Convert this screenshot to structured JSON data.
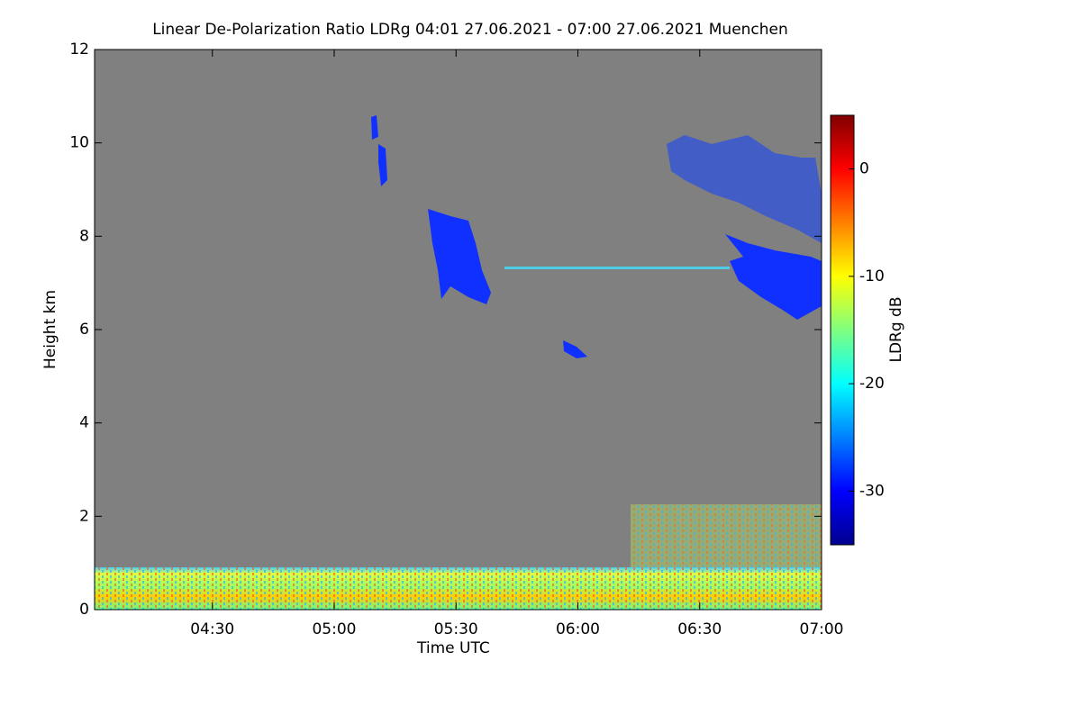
{
  "chart_data": {
    "type": "heatmap",
    "title": "Linear De-Polarization Ratio LDRg   04:01 27.06.2021 - 07:00 27.06.2021 Muenchen",
    "x_label": "Time UTC",
    "y_label": "Height km",
    "colorbar_label": "LDRg dB",
    "xlim": [
      241,
      420
    ],
    "xticks": [
      {
        "value": 270,
        "label": "04:30"
      },
      {
        "value": 300,
        "label": "05:00"
      },
      {
        "value": 330,
        "label": "05:30"
      },
      {
        "value": 360,
        "label": "06:00"
      },
      {
        "value": 390,
        "label": "06:30"
      },
      {
        "value": 420,
        "label": "07:00"
      }
    ],
    "ylim": [
      0,
      12
    ],
    "yticks": [
      0,
      2,
      4,
      6,
      8,
      10,
      12
    ],
    "clim": [
      -35,
      5
    ],
    "cticks": [
      -30,
      -20,
      -10,
      0
    ],
    "colormap": [
      "#00008f",
      "#0000ff",
      "#0080ff",
      "#00ffff",
      "#80ff80",
      "#ffff00",
      "#ff8000",
      "#ff0000",
      "#800000"
    ],
    "background": "#808080"
  }
}
